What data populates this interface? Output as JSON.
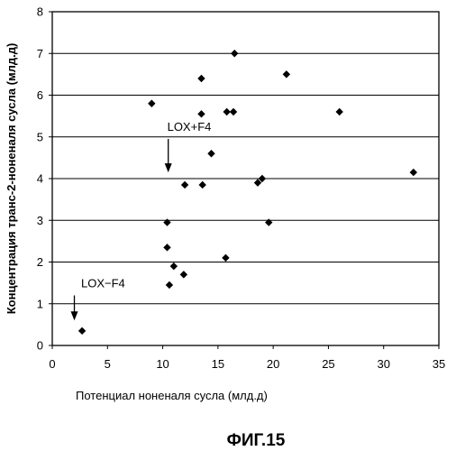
{
  "chart_data": {
    "type": "scatter",
    "title": "",
    "xlabel": "Потенциал ноненаля сусла (млд.д)",
    "ylabel": "Концентрация транс-2-ноненаля сусла (млд.д)",
    "xlim": [
      0,
      35
    ],
    "ylim": [
      0,
      8
    ],
    "xticks": [
      0,
      5,
      10,
      15,
      20,
      25,
      30,
      35
    ],
    "yticks": [
      0,
      1,
      2,
      3,
      4,
      5,
      6,
      7,
      8
    ],
    "grid": "horizontal",
    "legend": "none",
    "marker": "diamond",
    "marker_color": "#000000",
    "series": [
      {
        "points": [
          {
            "x": 2.7,
            "y": 0.35
          },
          {
            "x": 9.0,
            "y": 5.8
          },
          {
            "x": 10.4,
            "y": 2.95
          },
          {
            "x": 10.4,
            "y": 2.35
          },
          {
            "x": 10.6,
            "y": 1.45
          },
          {
            "x": 11.0,
            "y": 1.9
          },
          {
            "x": 11.9,
            "y": 1.7
          },
          {
            "x": 12.0,
            "y": 3.85
          },
          {
            "x": 13.5,
            "y": 6.4
          },
          {
            "x": 13.5,
            "y": 5.55
          },
          {
            "x": 13.6,
            "y": 3.85
          },
          {
            "x": 14.4,
            "y": 4.6
          },
          {
            "x": 15.7,
            "y": 2.1
          },
          {
            "x": 15.8,
            "y": 5.6
          },
          {
            "x": 16.4,
            "y": 5.6
          },
          {
            "x": 16.5,
            "y": 7.0
          },
          {
            "x": 18.6,
            "y": 3.9
          },
          {
            "x": 19.0,
            "y": 4.0
          },
          {
            "x": 19.6,
            "y": 2.95
          },
          {
            "x": 21.2,
            "y": 6.5
          },
          {
            "x": 26.0,
            "y": 5.6
          },
          {
            "x": 32.7,
            "y": 4.15
          }
        ]
      }
    ],
    "annotations": [
      {
        "text": "LOX+F4",
        "text_at": {
          "x": 12.4,
          "y": 5.15
        },
        "arrow_from": {
          "x": 10.5,
          "y": 4.95
        },
        "arrow_to": {
          "x": 10.5,
          "y": 4.15
        }
      },
      {
        "text": "LOX−F4",
        "text_at": {
          "x": 4.6,
          "y": 1.4
        },
        "arrow_from": {
          "x": 2.0,
          "y": 1.2
        },
        "arrow_to": {
          "x": 2.0,
          "y": 0.6
        }
      }
    ],
    "caption": "ФИГ.15"
  }
}
